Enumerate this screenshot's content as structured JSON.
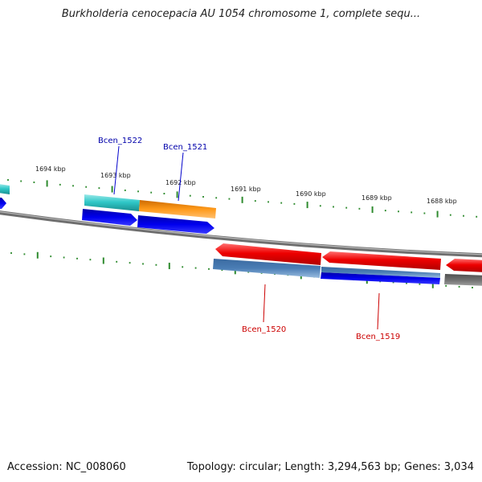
{
  "title": "Burkholderia cenocepacia AU 1054 chromosome 1, complete sequ...",
  "footer": {
    "accession": "Accession: NC_008060",
    "summary": "Topology: circular; Length: 3,294,563 bp; Genes: 3,034"
  },
  "ticks": [
    {
      "label": "1694 kbp"
    },
    {
      "label": "1693 kbp"
    },
    {
      "label": "1692 kbp"
    },
    {
      "label": "1691 kbp"
    },
    {
      "label": "1690 kbp"
    },
    {
      "label": "1689 kbp"
    },
    {
      "label": "1688 kbp"
    }
  ],
  "genes": [
    {
      "label": "Bcen_1522",
      "color": "#0000aa"
    },
    {
      "label": "Bcen_1521",
      "color": "#0000aa"
    },
    {
      "label": "Bcen_1520",
      "color": "#cc0000"
    },
    {
      "label": "Bcen_1519",
      "color": "#cc0000"
    }
  ],
  "colors": {
    "backbone": "#808080",
    "tick": "#2e8b2e",
    "cds_forward": "#0000ee",
    "cds_reverse": "#ee0000",
    "teal": "#30c8c8",
    "orange": "#ff8c00",
    "steelblue": "#4a7db5",
    "gray": "#707070"
  }
}
